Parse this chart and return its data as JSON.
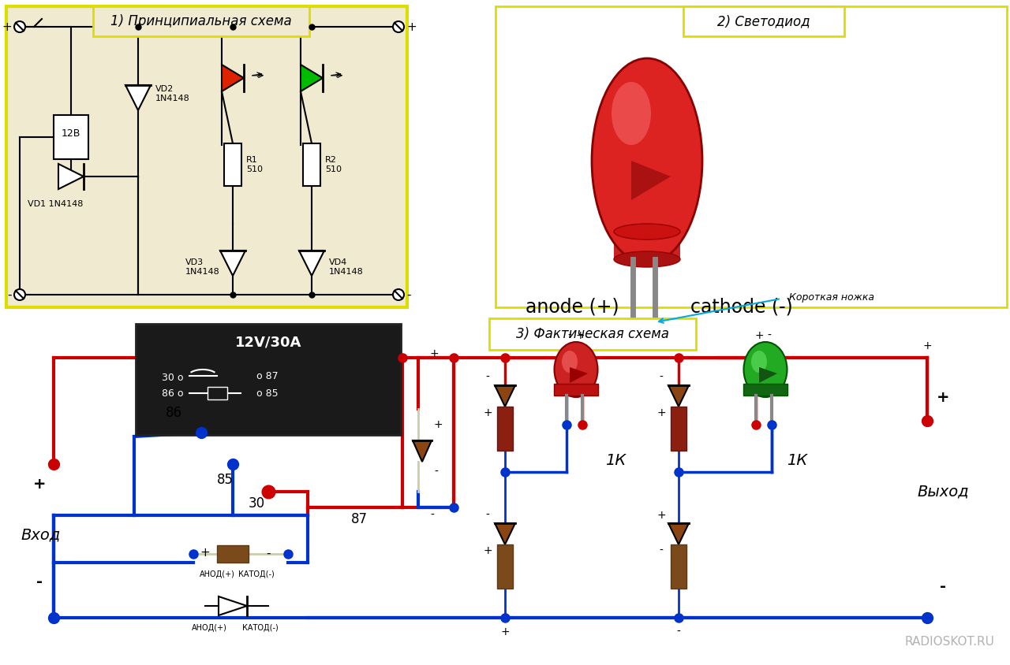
{
  "section1_title": "1) Принципиальная схема",
  "section2_title": "2) Светодиод",
  "section3_title": "3) Фактическая схема",
  "anode_text": "anode (+)",
  "cathode_text": "cathode (-)",
  "short_leg_text": "Короткая ножка",
  "vhod_text": "Вход",
  "vyhod_text": "Выход",
  "relay_label": "12V/30A",
  "r1k_label": "1К",
  "r2k_label": "1К",
  "watermark": "RADIOSKOT.RU",
  "red_color": "#cc0000",
  "blue_color": "#0033cc",
  "yellow_border": "#dddd00",
  "relay_pins": [
    "30",
    "85",
    "86",
    "87"
  ]
}
